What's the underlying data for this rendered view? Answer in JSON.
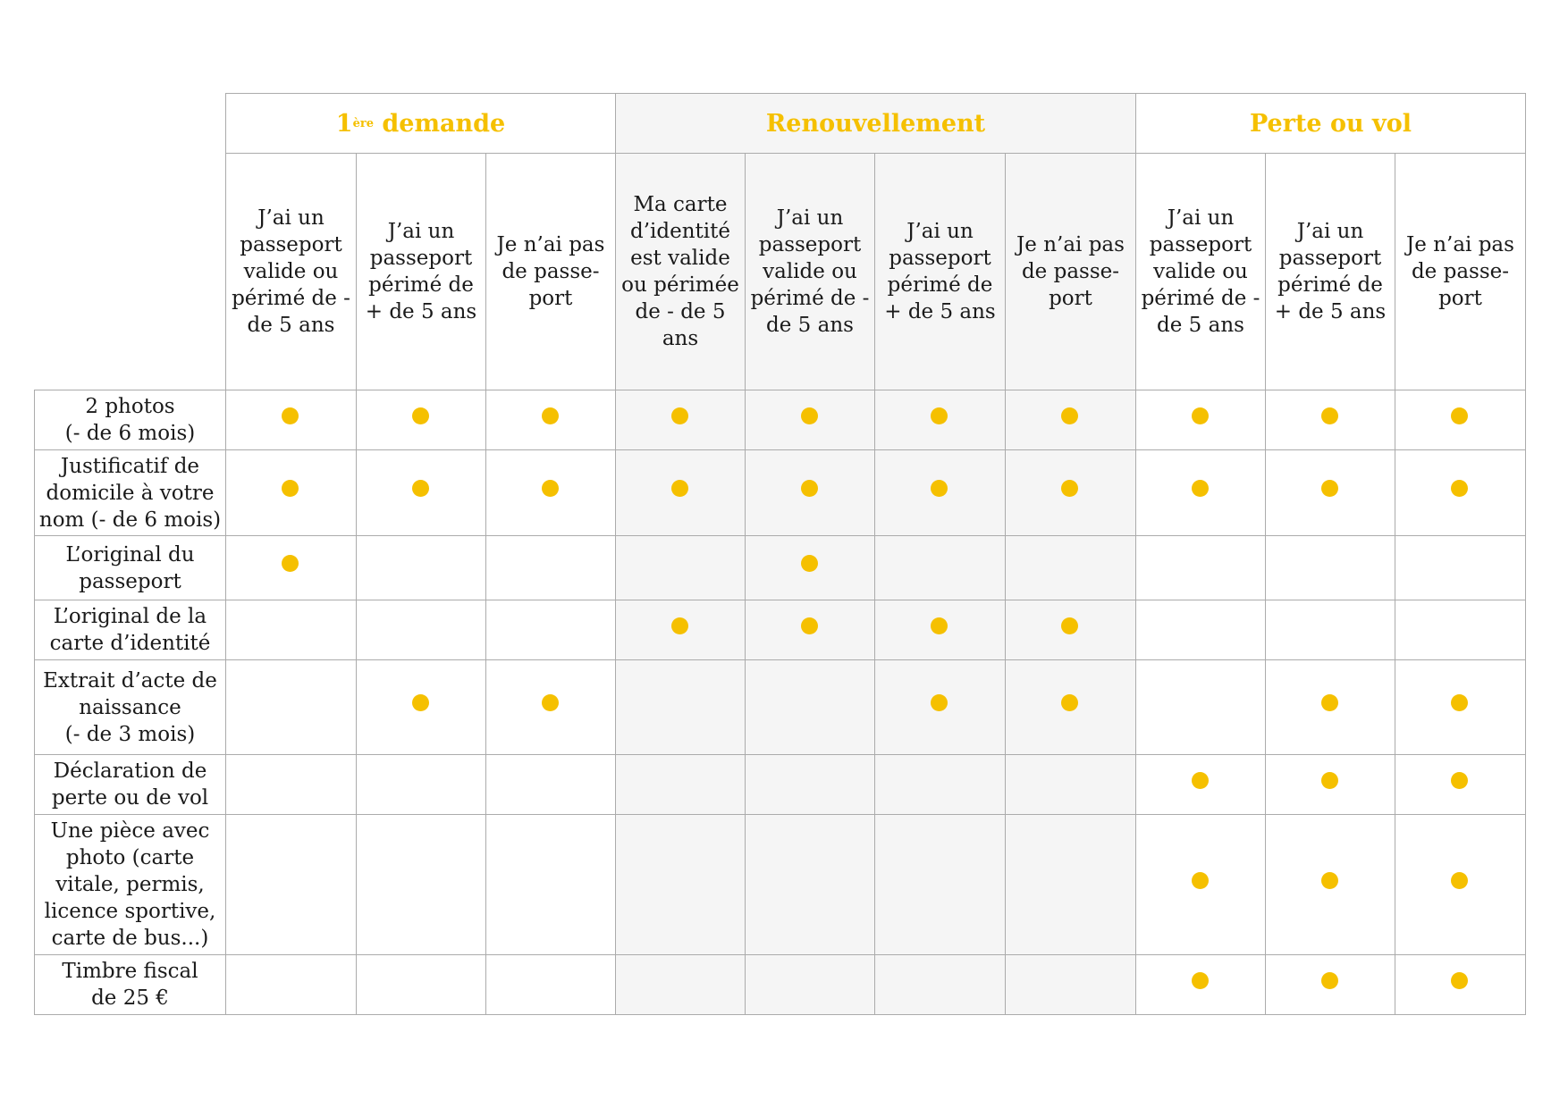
{
  "groups": [
    {
      "label_main": "demande",
      "label_number": "1",
      "label_sup": "ère",
      "span": [
        0,
        3
      ]
    },
    {
      "label": "Renouvellement",
      "span": [
        3,
        7
      ]
    },
    {
      "label": "Perte ou vol",
      "span": [
        7,
        10
      ]
    }
  ],
  "sub_headers": [
    "J’ai un\npasseport\nvalide ou\npérimé de -\nde 5 ans",
    "J’ai un\npasseport\npérimé de\n+ de 5 ans",
    "Je n’ai pas\nde passe-\nport",
    "Ma carte\nd’identité\nest valide\nou périmée\nde - de 5\nans",
    "J’ai un\npasseport\nvalide ou\npérimé de -\nde 5 ans",
    "J’ai un\npasseport\npérimé de\n+ de 5 ans",
    "Je n’ai pas\nde passe-\nport",
    "J’ai un\npasseport\nvalide ou\npérimé de -\nde 5 ans",
    "J’ai un\npasseport\npérimé de\n+ de 5 ans",
    "Je n’ai pas\nde passe-\nport"
  ],
  "rows": [
    {
      "label": "2 photos\n(- de 6 mois)",
      "marks": [
        1,
        1,
        1,
        1,
        1,
        1,
        1,
        1,
        1,
        1
      ]
    },
    {
      "label": "Justificatif de\ndomicile à votre\nnom (- de 6 mois)",
      "marks": [
        1,
        1,
        1,
        1,
        1,
        1,
        1,
        1,
        1,
        1
      ]
    },
    {
      "label": "L’original du\npasseport",
      "marks": [
        1,
        0,
        0,
        0,
        1,
        0,
        0,
        0,
        0,
        0
      ]
    },
    {
      "label": "L’original de la\ncarte d’identité",
      "marks": [
        0,
        0,
        0,
        1,
        1,
        1,
        1,
        0,
        0,
        0
      ]
    },
    {
      "label": "Extrait d’acte de\nnaissance\n(- de 3 mois)",
      "marks": [
        0,
        1,
        1,
        0,
        0,
        1,
        1,
        0,
        1,
        1
      ]
    },
    {
      "label": "Déclaration de\nperte ou de vol",
      "marks": [
        0,
        0,
        0,
        0,
        0,
        0,
        0,
        1,
        1,
        1
      ]
    },
    {
      "label": "Une pièce avec\nphoto (carte\nvitale, permis,\nlicence sportive,\ncarte de bus...)",
      "marks": [
        0,
        0,
        0,
        0,
        0,
        0,
        0,
        1,
        1,
        1
      ]
    },
    {
      "label": "Timbre fiscal\nde 25 €",
      "marks": [
        0,
        0,
        0,
        0,
        0,
        0,
        0,
        1,
        1,
        1
      ]
    }
  ],
  "colors": {
    "accent": "#f5c000",
    "shade": "#f5f5f5",
    "grid": "#ababab"
  }
}
